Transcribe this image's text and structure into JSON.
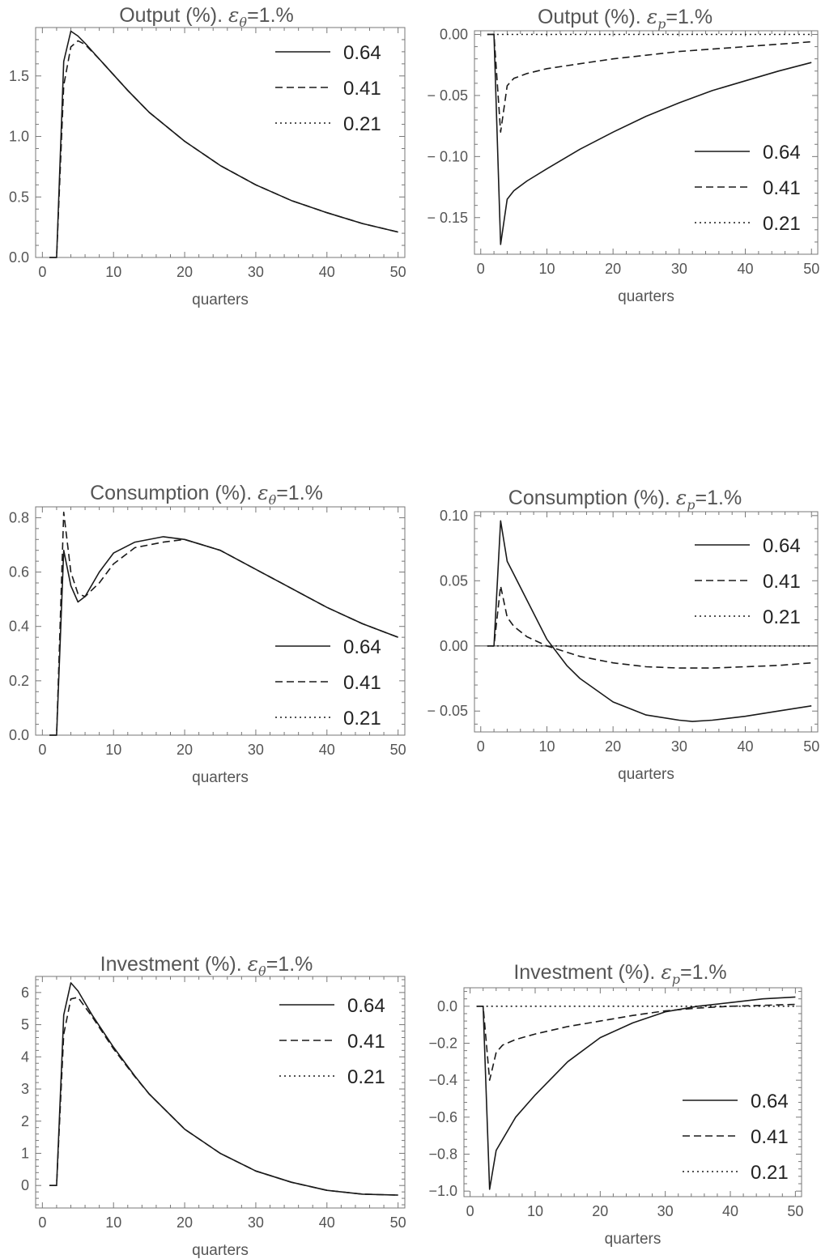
{
  "chart_data": [
    {
      "id": "output-theta",
      "type": "line",
      "title": {
        "prefix": "Output (%). ",
        "symbol": "ε",
        "subscript": "θ",
        "suffix": "=1.%"
      },
      "xlabel": "quarters",
      "ylabel": "",
      "xlim": [
        0,
        50
      ],
      "ylim": [
        0,
        1.9
      ],
      "xticks": [
        0,
        10,
        20,
        30,
        40,
        50
      ],
      "yticks": [
        0.0,
        0.5,
        1.0,
        1.5
      ],
      "ytick_labels": [
        "0.0",
        "0.5",
        "1.0",
        "1.5"
      ],
      "legend_position": "top-right",
      "grid": false,
      "zero_line": false,
      "series": [
        {
          "name": "0.64",
          "style": "solid",
          "points": [
            [
              1,
              0
            ],
            [
              2,
              0
            ],
            [
              3,
              1.62
            ],
            [
              4,
              1.87
            ],
            [
              5,
              1.83
            ],
            [
              6,
              1.77
            ],
            [
              8,
              1.64
            ],
            [
              10,
              1.51
            ],
            [
              12,
              1.38
            ],
            [
              15,
              1.2
            ],
            [
              20,
              0.96
            ],
            [
              25,
              0.76
            ],
            [
              30,
              0.6
            ],
            [
              35,
              0.47
            ],
            [
              40,
              0.37
            ],
            [
              45,
              0.28
            ],
            [
              50,
              0.21
            ]
          ]
        },
        {
          "name": "0.41",
          "style": "dashed",
          "points": [
            [
              1,
              0
            ],
            [
              2,
              0
            ],
            [
              3,
              1.42
            ],
            [
              4,
              1.74
            ],
            [
              5,
              1.79
            ],
            [
              6,
              1.76
            ],
            [
              8,
              1.64
            ],
            [
              10,
              1.51
            ],
            [
              12,
              1.38
            ],
            [
              15,
              1.2
            ],
            [
              20,
              0.96
            ],
            [
              25,
              0.76
            ],
            [
              30,
              0.6
            ],
            [
              35,
              0.47
            ],
            [
              40,
              0.37
            ],
            [
              45,
              0.28
            ],
            [
              50,
              0.21
            ]
          ]
        },
        {
          "name": "0.21",
          "style": "dotted",
          "points": []
        }
      ]
    },
    {
      "id": "output-p",
      "type": "line",
      "title": {
        "prefix": "Output (%). ",
        "symbol": "ε",
        "subscript": "p",
        "suffix": "=1.%"
      },
      "xlabel": "quarters",
      "ylabel": "",
      "xlim": [
        0,
        50
      ],
      "ylim": [
        -0.18,
        0.003
      ],
      "xticks": [
        0,
        10,
        20,
        30,
        40,
        50
      ],
      "yticks": [
        0.0,
        -0.05,
        -0.1,
        -0.15
      ],
      "ytick_labels": [
        "0.00",
        "− 0.05",
        "− 0.10",
        "− 0.15"
      ],
      "legend_position": "center-right",
      "grid": false,
      "zero_line": false,
      "series": [
        {
          "name": "0.64",
          "style": "solid",
          "points": [
            [
              1,
              0
            ],
            [
              2,
              0
            ],
            [
              3,
              -0.172
            ],
            [
              4,
              -0.135
            ],
            [
              5,
              -0.128
            ],
            [
              7,
              -0.12
            ],
            [
              10,
              -0.11
            ],
            [
              15,
              -0.094
            ],
            [
              20,
              -0.08
            ],
            [
              25,
              -0.067
            ],
            [
              30,
              -0.056
            ],
            [
              35,
              -0.046
            ],
            [
              40,
              -0.038
            ],
            [
              45,
              -0.03
            ],
            [
              50,
              -0.023
            ]
          ]
        },
        {
          "name": "0.41",
          "style": "dashed",
          "points": [
            [
              1,
              0
            ],
            [
              2,
              0
            ],
            [
              3,
              -0.08
            ],
            [
              4,
              -0.042
            ],
            [
              5,
              -0.036
            ],
            [
              7,
              -0.032
            ],
            [
              10,
              -0.028
            ],
            [
              15,
              -0.024
            ],
            [
              20,
              -0.02
            ],
            [
              25,
              -0.017
            ],
            [
              30,
              -0.014
            ],
            [
              35,
              -0.012
            ],
            [
              40,
              -0.01
            ],
            [
              45,
              -0.008
            ],
            [
              50,
              -0.006
            ]
          ]
        },
        {
          "name": "0.21",
          "style": "dotted",
          "points": [
            [
              1,
              0
            ],
            [
              50,
              0
            ]
          ]
        }
      ]
    },
    {
      "id": "consumption-theta",
      "type": "line",
      "title": {
        "prefix": "Consumption (%). ",
        "symbol": "ε",
        "subscript": "θ",
        "suffix": "=1.%"
      },
      "xlabel": "quarters",
      "ylabel": "",
      "xlim": [
        0,
        50
      ],
      "ylim": [
        0,
        0.84
      ],
      "xticks": [
        0,
        10,
        20,
        30,
        40,
        50
      ],
      "yticks": [
        0.0,
        0.2,
        0.4,
        0.6,
        0.8
      ],
      "ytick_labels": [
        "0.0",
        "0.2",
        "0.4",
        "0.6",
        "0.8"
      ],
      "legend_position": "bottom-right",
      "grid": false,
      "zero_line": false,
      "series": [
        {
          "name": "0.64",
          "style": "solid",
          "points": [
            [
              1,
              0
            ],
            [
              2,
              0
            ],
            [
              3,
              0.68
            ],
            [
              4,
              0.55
            ],
            [
              5,
              0.49
            ],
            [
              6,
              0.51
            ],
            [
              8,
              0.6
            ],
            [
              10,
              0.67
            ],
            [
              13,
              0.71
            ],
            [
              17,
              0.73
            ],
            [
              20,
              0.72
            ],
            [
              25,
              0.68
            ],
            [
              30,
              0.61
            ],
            [
              35,
              0.54
            ],
            [
              40,
              0.47
            ],
            [
              45,
              0.41
            ],
            [
              50,
              0.36
            ]
          ]
        },
        {
          "name": "0.41",
          "style": "dashed",
          "points": [
            [
              1,
              0
            ],
            [
              2,
              0
            ],
            [
              3,
              0.82
            ],
            [
              4,
              0.6
            ],
            [
              5,
              0.52
            ],
            [
              6,
              0.51
            ],
            [
              8,
              0.56
            ],
            [
              10,
              0.63
            ],
            [
              13,
              0.69
            ],
            [
              17,
              0.71
            ],
            [
              20,
              0.72
            ],
            [
              25,
              0.68
            ],
            [
              30,
              0.61
            ],
            [
              35,
              0.54
            ],
            [
              40,
              0.47
            ],
            [
              45,
              0.41
            ],
            [
              50,
              0.36
            ]
          ]
        },
        {
          "name": "0.21",
          "style": "dotted",
          "points": []
        }
      ]
    },
    {
      "id": "consumption-p",
      "type": "line",
      "title": {
        "prefix": "Consumption (%). ",
        "symbol": "ε",
        "subscript": "p",
        "suffix": "=1.%"
      },
      "xlabel": "quarters",
      "ylabel": "",
      "xlim": [
        0,
        50
      ],
      "ylim": [
        -0.066,
        0.103
      ],
      "xticks": [
        0,
        10,
        20,
        30,
        40,
        50
      ],
      "yticks": [
        0.1,
        0.05,
        0.0,
        -0.05
      ],
      "ytick_labels": [
        "0.10",
        "0.05",
        "0.00",
        "− 0.05"
      ],
      "legend_position": "top-right",
      "grid": false,
      "zero_line": true,
      "series": [
        {
          "name": "0.64",
          "style": "solid",
          "points": [
            [
              1,
              0
            ],
            [
              2,
              0
            ],
            [
              3,
              0.096
            ],
            [
              4,
              0.065
            ],
            [
              5,
              0.055
            ],
            [
              7,
              0.035
            ],
            [
              10,
              0.005
            ],
            [
              13,
              -0.015
            ],
            [
              15,
              -0.025
            ],
            [
              20,
              -0.043
            ],
            [
              25,
              -0.053
            ],
            [
              30,
              -0.057
            ],
            [
              32,
              -0.058
            ],
            [
              35,
              -0.057
            ],
            [
              40,
              -0.054
            ],
            [
              45,
              -0.05
            ],
            [
              50,
              -0.046
            ]
          ]
        },
        {
          "name": "0.41",
          "style": "dashed",
          "points": [
            [
              1,
              0
            ],
            [
              2,
              0
            ],
            [
              3,
              0.046
            ],
            [
              4,
              0.022
            ],
            [
              5,
              0.015
            ],
            [
              7,
              0.007
            ],
            [
              10,
              0.0
            ],
            [
              15,
              -0.008
            ],
            [
              20,
              -0.013
            ],
            [
              25,
              -0.016
            ],
            [
              30,
              -0.017
            ],
            [
              35,
              -0.017
            ],
            [
              40,
              -0.016
            ],
            [
              45,
              -0.015
            ],
            [
              50,
              -0.013
            ]
          ]
        },
        {
          "name": "0.21",
          "style": "dotted",
          "points": [
            [
              1,
              0
            ],
            [
              50,
              0
            ]
          ]
        }
      ]
    },
    {
      "id": "investment-theta",
      "type": "line",
      "title": {
        "prefix": "Investment (%). ",
        "symbol": "ε",
        "subscript": "θ",
        "suffix": "=1.%"
      },
      "xlabel": "quarters",
      "ylabel": "",
      "xlim": [
        0,
        50
      ],
      "ylim": [
        -0.7,
        6.5
      ],
      "xticks": [
        0,
        10,
        20,
        30,
        40,
        50
      ],
      "yticks": [
        0,
        1,
        2,
        3,
        4,
        5,
        6
      ],
      "ytick_labels": [
        "0",
        "1",
        "2",
        "3",
        "4",
        "5",
        "6"
      ],
      "legend_position": "top-right",
      "grid": false,
      "zero_line": false,
      "series": [
        {
          "name": "0.64",
          "style": "solid",
          "points": [
            [
              1,
              0
            ],
            [
              2,
              0
            ],
            [
              3,
              5.3
            ],
            [
              4,
              6.3
            ],
            [
              5,
              6.05
            ],
            [
              7,
              5.3
            ],
            [
              10,
              4.3
            ],
            [
              13,
              3.4
            ],
            [
              15,
              2.85
            ],
            [
              20,
              1.75
            ],
            [
              25,
              1.0
            ],
            [
              30,
              0.45
            ],
            [
              35,
              0.1
            ],
            [
              40,
              -0.15
            ],
            [
              45,
              -0.27
            ],
            [
              50,
              -0.3
            ]
          ]
        },
        {
          "name": "0.41",
          "style": "dashed",
          "points": [
            [
              1,
              0
            ],
            [
              2,
              0
            ],
            [
              3,
              4.7
            ],
            [
              4,
              5.8
            ],
            [
              5,
              5.85
            ],
            [
              7,
              5.25
            ],
            [
              10,
              4.25
            ],
            [
              13,
              3.38
            ],
            [
              15,
              2.85
            ],
            [
              20,
              1.75
            ],
            [
              25,
              1.0
            ],
            [
              30,
              0.45
            ],
            [
              35,
              0.1
            ],
            [
              40,
              -0.15
            ],
            [
              45,
              -0.27
            ],
            [
              50,
              -0.3
            ]
          ]
        },
        {
          "name": "0.21",
          "style": "dotted",
          "points": []
        }
      ]
    },
    {
      "id": "investment-p",
      "type": "line",
      "title": {
        "prefix": "Investment (%). ",
        "symbol": "ε",
        "subscript": "p",
        "suffix": "=1.%"
      },
      "xlabel": "quarters",
      "ylabel": "",
      "xlim": [
        0,
        50
      ],
      "ylim": [
        -1.03,
        0.1
      ],
      "xticks": [
        0,
        10,
        20,
        30,
        40,
        50
      ],
      "yticks": [
        0.0,
        -0.2,
        -0.4,
        -0.6,
        -0.8,
        -1.0
      ],
      "ytick_labels": [
        "0.0",
        "−0.2",
        "−0.4",
        "−0.6",
        "−0.8",
        "−1.0"
      ],
      "legend_position": "bottom-right",
      "grid": false,
      "zero_line": false,
      "series": [
        {
          "name": "0.64",
          "style": "solid",
          "points": [
            [
              1,
              0
            ],
            [
              2,
              0
            ],
            [
              3,
              -0.99
            ],
            [
              4,
              -0.78
            ],
            [
              5,
              -0.72
            ],
            [
              7,
              -0.6
            ],
            [
              10,
              -0.48
            ],
            [
              15,
              -0.3
            ],
            [
              20,
              -0.17
            ],
            [
              25,
              -0.09
            ],
            [
              30,
              -0.03
            ],
            [
              35,
              0.0
            ],
            [
              40,
              0.02
            ],
            [
              45,
              0.04
            ],
            [
              50,
              0.05
            ]
          ]
        },
        {
          "name": "0.41",
          "style": "dashed",
          "points": [
            [
              1,
              0
            ],
            [
              2,
              0
            ],
            [
              3,
              -0.4
            ],
            [
              4,
              -0.25
            ],
            [
              5,
              -0.21
            ],
            [
              7,
              -0.18
            ],
            [
              10,
              -0.15
            ],
            [
              15,
              -0.11
            ],
            [
              20,
              -0.08
            ],
            [
              25,
              -0.05
            ],
            [
              30,
              -0.025
            ],
            [
              35,
              -0.01
            ],
            [
              40,
              0.0
            ],
            [
              45,
              0.005
            ],
            [
              50,
              0.01
            ]
          ]
        },
        {
          "name": "0.21",
          "style": "dotted",
          "points": [
            [
              1,
              0
            ],
            [
              50,
              0
            ]
          ]
        }
      ]
    }
  ]
}
